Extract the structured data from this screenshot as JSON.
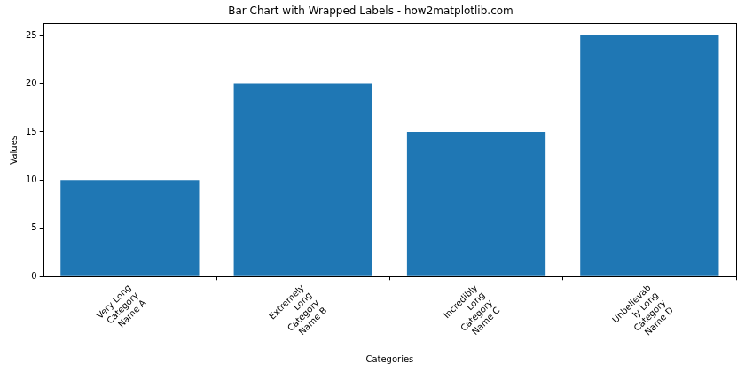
{
  "chart_data": {
    "type": "bar",
    "title": "Bar Chart with Wrapped Labels - how2matplotlib.com",
    "x_label": "Categories",
    "y_label": "Values",
    "categories": [
      "Very Long\nCategory\nName A",
      "Extremely\nLong\nCategory\nName B",
      "Incredibly\nLong\nCategory\nName C",
      "Unbelievab\nly Long\nCategory\nName D"
    ],
    "values": [
      10,
      20,
      15,
      25
    ],
    "color": "#1f77b4",
    "ylim": [
      0,
      26.25
    ],
    "yticks": [
      0,
      5,
      10,
      15,
      20,
      25
    ],
    "grid": false
  }
}
